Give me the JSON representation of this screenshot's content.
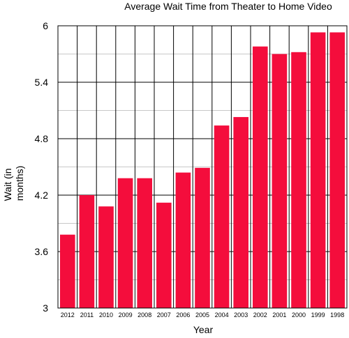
{
  "chart_data": {
    "type": "bar",
    "title": "Average Wait Time from Theater to Home Video",
    "xlabel": "Year",
    "ylabel": "Wait (in months)",
    "ylabel_lines": [
      "Wait (in",
      "months)"
    ],
    "categories": [
      "2012",
      "2011",
      "2010",
      "2009",
      "2008",
      "2007",
      "2006",
      "2005",
      "2004",
      "2003",
      "2002",
      "2001",
      "2000",
      "1999",
      "1998"
    ],
    "values": [
      3.78,
      4.2,
      4.08,
      4.38,
      4.38,
      4.12,
      4.44,
      4.49,
      4.94,
      5.03,
      5.78,
      5.7,
      5.72,
      5.93,
      5.93
    ],
    "ylim": [
      3,
      6
    ],
    "yticks": [
      "3",
      "3.6",
      "4.2",
      "4.8",
      "5.4",
      "6"
    ],
    "ytick_values": [
      3,
      3.6,
      4.2,
      4.8,
      5.4,
      6
    ],
    "grid": true,
    "bar_color": "#f40d3c",
    "grid_color": "#000000",
    "minor_grid_color": "#c8c8c8"
  }
}
